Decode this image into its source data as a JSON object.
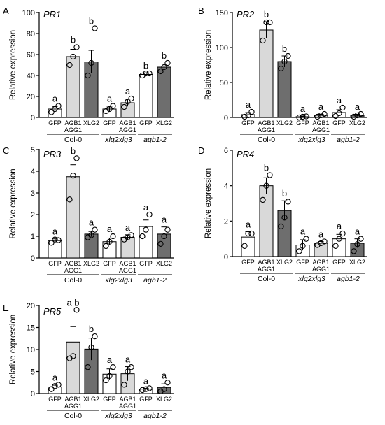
{
  "panel_letters": [
    "A",
    "B",
    "C",
    "D",
    "E"
  ],
  "colors": {
    "GFP": "#ffffff",
    "AGB1\nAGG1": "#d9d9d9",
    "XLG2": "#6e6e6e",
    "stroke": "#000000"
  },
  "chart_data": [
    {
      "type": "bar",
      "title": "PR1",
      "ylabel": "Relative expression",
      "ylim": [
        0,
        100
      ],
      "yticks": [
        0,
        20,
        40,
        60,
        80,
        100
      ],
      "categories": [
        "GFP",
        "AGB1\nAGG1",
        "XLG2",
        "GFP",
        "AGB1\nAGG1",
        "GFP",
        "XLG2"
      ],
      "groups": [
        {
          "label": "Col-0",
          "italic": false,
          "count": 3
        },
        {
          "label": "xlg2xlg3",
          "italic": true,
          "count": 2
        },
        {
          "label": "agb1-2",
          "italic": true,
          "count": 2
        }
      ],
      "values": [
        8,
        58,
        53,
        8,
        14,
        41,
        48
      ],
      "errors": [
        2.5,
        7,
        11,
        2,
        3.5,
        1.5,
        3
      ],
      "points": [
        [
          5,
          8,
          11
        ],
        [
          50,
          58,
          67
        ],
        [
          40,
          52,
          85
        ],
        [
          6,
          8,
          11
        ],
        [
          10,
          15,
          18
        ],
        [
          40,
          42,
          42
        ],
        [
          44,
          48,
          52
        ]
      ],
      "letters": [
        "a",
        "b",
        "b",
        "a",
        "a",
        "b",
        "b"
      ]
    },
    {
      "type": "bar",
      "title": "PR2",
      "ylabel": "Relative expression",
      "ylim": [
        0,
        150
      ],
      "yticks": [
        0,
        50,
        100,
        150
      ],
      "categories": [
        "GFP",
        "AGB1\nAGG1",
        "XLG2",
        "GFP",
        "AGB1\nAGG1",
        "GFP",
        "XLG2"
      ],
      "groups": [
        {
          "label": "Col-0",
          "italic": false,
          "count": 3
        },
        {
          "label": "xlg2xlg3",
          "italic": true,
          "count": 2
        },
        {
          "label": "agb1-2",
          "italic": true,
          "count": 2
        }
      ],
      "values": [
        4,
        125,
        80,
        1,
        3,
        7,
        3
      ],
      "errors": [
        3,
        12,
        8,
        1,
        1.5,
        4,
        1.5
      ],
      "points": [
        [
          1,
          3,
          8
        ],
        [
          110,
          136,
          136
        ],
        [
          70,
          80,
          88
        ],
        [
          0,
          1,
          1.5
        ],
        [
          1,
          3,
          5
        ],
        [
          2,
          6,
          14
        ],
        [
          1,
          3,
          5
        ]
      ],
      "letters": [
        "a",
        "b",
        "b",
        "a",
        "a",
        "a",
        "a"
      ]
    },
    {
      "type": "bar",
      "title": "PR3",
      "ylabel": "Relative expression",
      "ylim": [
        0,
        5
      ],
      "yticks": [
        0,
        1,
        2,
        3,
        4,
        5
      ],
      "categories": [
        "GFP",
        "AGB1\nAGG1",
        "XLG2",
        "GFP",
        "AGB1\nAGG1",
        "GFP",
        "XLG2"
      ],
      "groups": [
        {
          "label": "Col-0",
          "italic": false,
          "count": 3
        },
        {
          "label": "xlg2xlg3",
          "italic": true,
          "count": 2
        },
        {
          "label": "agb1-2",
          "italic": true,
          "count": 2
        }
      ],
      "values": [
        0.8,
        3.75,
        1.1,
        0.75,
        0.95,
        1.45,
        1.1
      ],
      "errors": [
        0.08,
        0.55,
        0.12,
        0.17,
        0.12,
        0.3,
        0.33
      ],
      "points": [
        [
          0.7,
          0.85,
          0.82
        ],
        [
          2.7,
          3.8,
          4.6
        ],
        [
          0.95,
          1.05,
          1.3
        ],
        [
          0.55,
          0.75,
          1.0
        ],
        [
          0.85,
          0.95,
          1.05
        ],
        [
          1.0,
          1.3,
          2.0
        ],
        [
          0.65,
          1.0,
          1.3
        ]
      ],
      "letters": [
        "a",
        "b",
        "a",
        "a",
        "a",
        "a",
        "a"
      ]
    },
    {
      "type": "bar",
      "title": "PR4",
      "ylabel": "Relative expression",
      "ylim": [
        0,
        6
      ],
      "yticks": [
        0,
        2,
        4,
        6
      ],
      "categories": [
        "GFP",
        "AGB1\nAGG1",
        "XLG2",
        "GFP",
        "AGB1\nAGG1",
        "GFP",
        "XLG2"
      ],
      "groups": [
        {
          "label": "Col-0",
          "italic": false,
          "count": 3
        },
        {
          "label": "xlg2xlg3",
          "italic": true,
          "count": 2
        },
        {
          "label": "agb1-2",
          "italic": true,
          "count": 2
        }
      ],
      "values": [
        1.1,
        4.0,
        2.6,
        0.65,
        0.75,
        1.0,
        0.75
      ],
      "errors": [
        0.3,
        0.45,
        0.55,
        0.3,
        0.1,
        0.25,
        0.25
      ],
      "points": [
        [
          0.6,
          1.3,
          1.3
        ],
        [
          3.2,
          4.0,
          4.6
        ],
        [
          1.7,
          2.2,
          3.1
        ],
        [
          0.3,
          0.6,
          1.0
        ],
        [
          0.65,
          0.75,
          0.85
        ],
        [
          0.6,
          1.0,
          1.3
        ],
        [
          0.3,
          0.7,
          1.0
        ]
      ],
      "letters": [
        "a",
        "b",
        "b",
        "a",
        "a",
        "a",
        "a"
      ]
    },
    {
      "type": "bar",
      "title": "PR5",
      "ylabel": "Relative expression",
      "ylim": [
        0,
        20
      ],
      "yticks": [
        0,
        5,
        10,
        15,
        20
      ],
      "categories": [
        "GFP",
        "AGB1\nAGG1",
        "XLG2",
        "GFP",
        "AGB1\nAGG1",
        "GFP",
        "XLG2"
      ],
      "groups": [
        {
          "label": "Col-0",
          "italic": false,
          "count": 3
        },
        {
          "label": "xlg2xlg3",
          "italic": true,
          "count": 2
        },
        {
          "label": "agb1-2",
          "italic": true,
          "count": 2
        }
      ],
      "values": [
        1.5,
        11.7,
        10.1,
        4.4,
        4.5,
        1.0,
        1.4
      ],
      "errors": [
        0.4,
        3.5,
        2.5,
        1.2,
        1.6,
        0.2,
        0.8
      ],
      "points": [
        [
          1.0,
          1.7,
          2.0
        ],
        [
          8.0,
          8.5,
          19.0
        ],
        [
          6.0,
          10.5,
          13.0
        ],
        [
          3.0,
          4.0,
          6.0
        ],
        [
          2.0,
          5.0,
          6.0
        ],
        [
          0.8,
          1.0,
          1.2
        ],
        [
          0.5,
          1.0,
          2.5
        ]
      ],
      "letters": [
        "a",
        "a b",
        "b",
        "a",
        "a",
        "a",
        "a"
      ]
    }
  ]
}
